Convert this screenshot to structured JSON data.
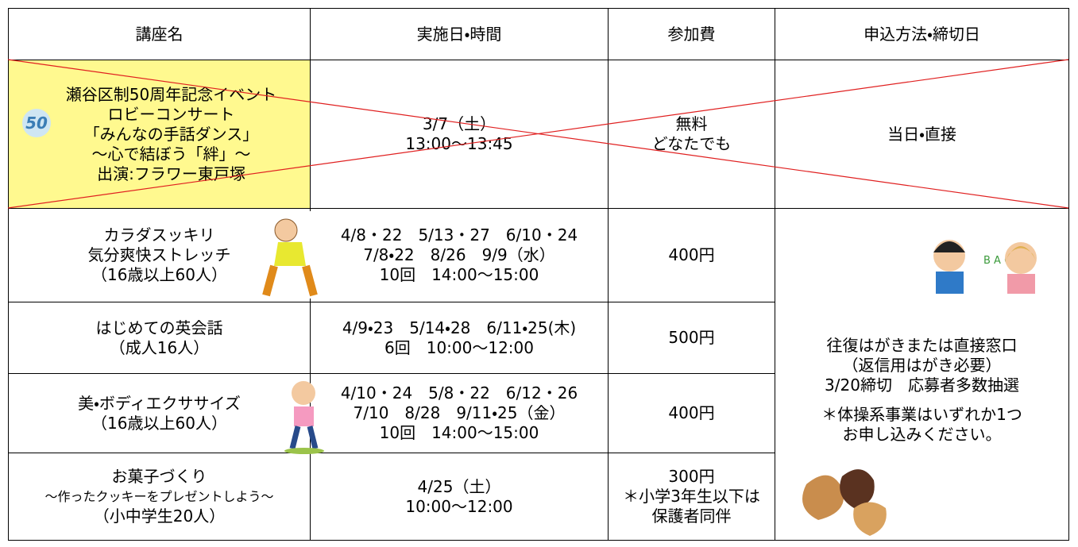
{
  "table": {
    "header": [
      "講座名",
      "実施日・時間",
      "参加費",
      "申込方法・締切日"
    ],
    "rows": [
      [
        [
          "瀬谷区制50周年記念イベント",
          "ロビーコンサート",
          "「みんなの手話ダンス」",
          "～心で結ぼう「絆」～",
          "出演:フラワー東戸塚"
        ],
        [
          "3/7（土）",
          "13:00～13:45"
        ],
        [
          "無料",
          "どなたでも"
        ],
        [
          "当日・直接"
        ]
      ],
      [
        [
          "カラダスッキリ",
          "気分爽快ストレッチ",
          "（16歳以上60人）"
        ],
        [
          "4/8・22　5/13・27　6/10・24",
          "7/8・22　8/26　9/9（水）",
          "10回　14:00～15:00"
        ],
        [
          "400円"
        ],
        [
          "往復はがきまたは直接窓口",
          "（返信用はがき必要）",
          "3/20締切　応募者多数抽選",
          "",
          "＊体操系事業はいずれか1つ",
          "お申し込みください。"
        ]
      ],
      [
        [
          "はじめての英会話",
          "（成人16人）"
        ],
        [
          "4/9・23　5/14・28　6/11・25(木)",
          "6回　10:00～12:00"
        ],
        [
          "500円"
        ]
      ],
      [
        [
          "美・ボディエクササイズ",
          "（16歳以上60人）"
        ],
        [
          "4/10・24　5/8・22　6/12・26",
          "7/10　8/28　9/11・25（金）",
          "10回　14:00～15:00"
        ],
        [
          "400円"
        ]
      ],
      [
        [
          "お菓子づくり",
          "～作ったクッキーをプレゼントしよう～",
          "（小中学生20人）"
        ],
        [
          "4/25（土）",
          "10:00～12:00"
        ],
        [
          "300円",
          "＊小学3年生以下は",
          "保護者同伴"
        ]
      ]
    ]
  }
}
